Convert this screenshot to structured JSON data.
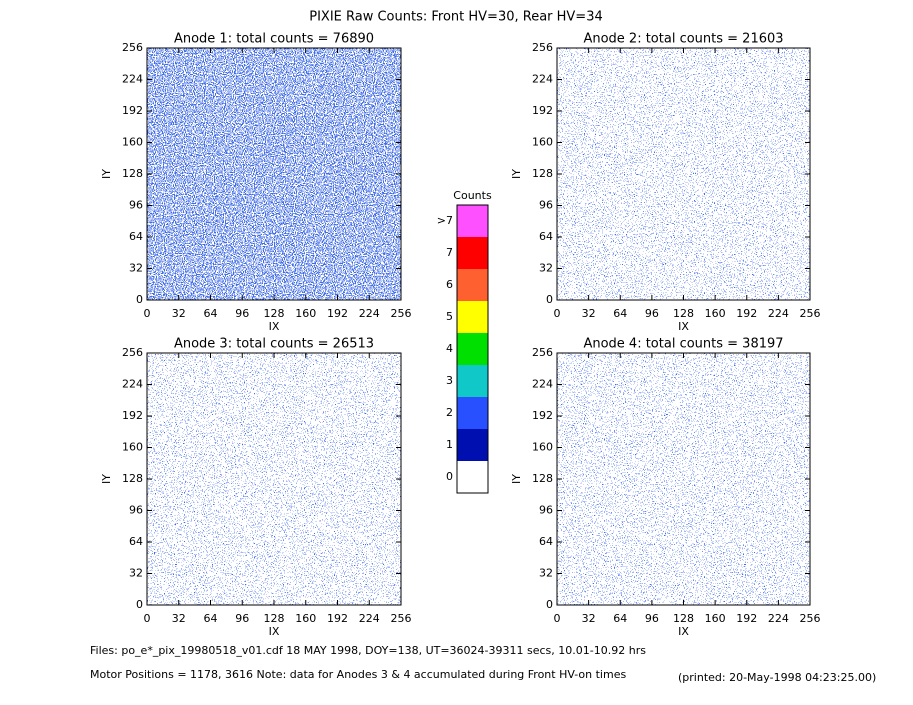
{
  "title": "PIXIE Raw Counts:  Front HV=30, Rear HV=34",
  "chart_data": [
    {
      "type": "heatmap",
      "title": "Anode 1: total counts = 76890",
      "x_label": "IX",
      "y_label": "IY",
      "xlim": [
        0,
        256
      ],
      "ylim": [
        0,
        256
      ],
      "xticks": [
        0,
        32,
        64,
        96,
        128,
        160,
        192,
        224,
        256
      ],
      "yticks": [
        0,
        32,
        64,
        96,
        128,
        160,
        192,
        224,
        256
      ]
    },
    {
      "type": "heatmap",
      "title": "Anode 2: total counts = 21603",
      "x_label": "IX",
      "y_label": "IY",
      "xlim": [
        0,
        256
      ],
      "ylim": [
        0,
        256
      ],
      "xticks": [
        0,
        32,
        64,
        96,
        128,
        160,
        192,
        224,
        256
      ],
      "yticks": [
        0,
        32,
        64,
        96,
        128,
        160,
        192,
        224,
        256
      ]
    },
    {
      "type": "heatmap",
      "title": "Anode 3: total counts = 26513",
      "x_label": "IX",
      "y_label": "IY",
      "xlim": [
        0,
        256
      ],
      "ylim": [
        0,
        256
      ],
      "xticks": [
        0,
        32,
        64,
        96,
        128,
        160,
        192,
        224,
        256
      ],
      "yticks": [
        0,
        32,
        64,
        96,
        128,
        160,
        192,
        224,
        256
      ]
    },
    {
      "type": "heatmap",
      "title": "Anode 4: total counts = 38197",
      "x_label": "IX",
      "y_label": "IY",
      "xlim": [
        0,
        256
      ],
      "ylim": [
        0,
        256
      ],
      "xticks": [
        0,
        32,
        64,
        96,
        128,
        160,
        192,
        224,
        256
      ],
      "yticks": [
        0,
        32,
        64,
        96,
        128,
        160,
        192,
        224,
        256
      ]
    },
    {
      "type": "colorbar",
      "title": "Counts",
      "categories": [
        "0",
        "1",
        "2",
        "3",
        "4",
        "5",
        "6",
        "7",
        ">7"
      ],
      "colors": [
        "#ffffff",
        "#0010b0",
        "#2850ff",
        "#10c8c8",
        "#00e000",
        "#ffff00",
        "#ff6030",
        "#ff0000",
        "#ff50ff"
      ]
    }
  ],
  "footer": {
    "files": "Files: po_e*_pix_19980518_v01.cdf     18 MAY 1998, DOY=138, UT=36024-39311 secs, 10.01-10.92 hrs",
    "motor": "Motor Positions = 1178, 3616    Note: data for Anodes 3 & 4 accumulated during Front HV-on times",
    "printed": "(printed: 20-May-1998 04:23:25.00)"
  }
}
